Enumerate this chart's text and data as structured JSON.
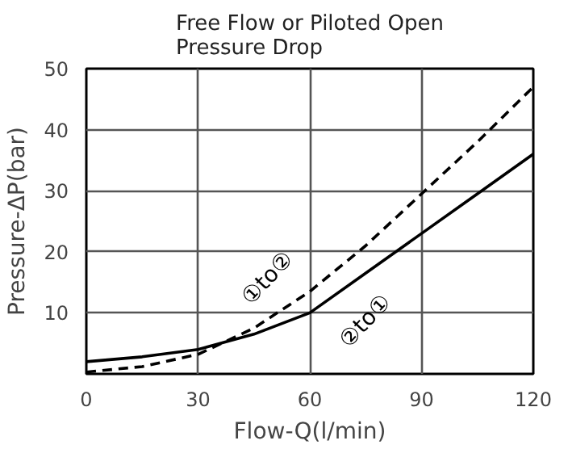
{
  "chart_data": {
    "type": "line",
    "title": "Free Flow or Piloted Open\nPressure Drop",
    "xlabel": "Flow-Q(l/min)",
    "ylabel": "Pressure-ΔP(bar)",
    "x": [
      0,
      15,
      30,
      45,
      60,
      75,
      90,
      105,
      120
    ],
    "series": [
      {
        "name": "①to②",
        "color": "#000000",
        "line_style": "dashed",
        "values": [
          0.3,
          1.2,
          3.2,
          7.5,
          13.5,
          21,
          29.5,
          38,
          47
        ]
      },
      {
        "name": "②to①",
        "color": "#000000",
        "line_style": "solid",
        "values": [
          2,
          2.8,
          4,
          6.5,
          10,
          16.5,
          23,
          29.5,
          36
        ]
      }
    ],
    "xlim": [
      0,
      120
    ],
    "ylim": [
      0,
      50
    ],
    "xticks": [
      0,
      30,
      60,
      90,
      120
    ],
    "yticks": [
      10,
      20,
      30,
      40,
      50
    ],
    "grid": true,
    "marker": "none"
  }
}
